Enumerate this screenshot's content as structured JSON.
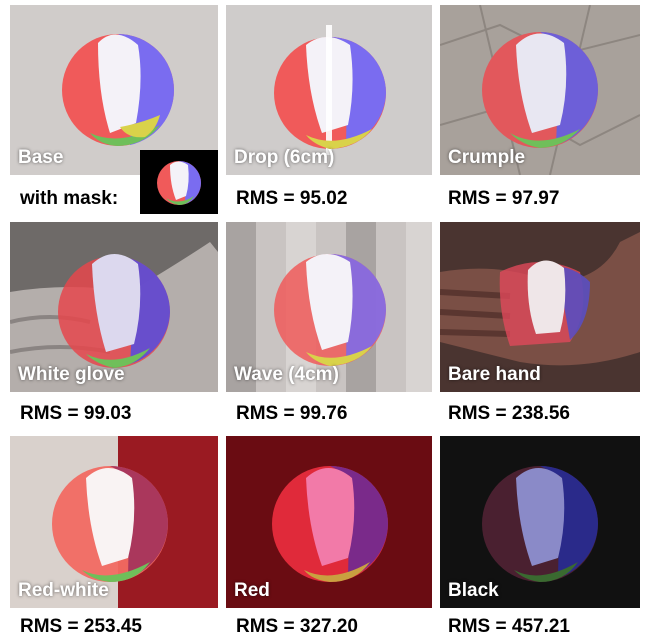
{
  "panels": [
    {
      "caption": "Base",
      "rms": "",
      "background": "#d8d4d0"
    },
    {
      "caption": "Drop (6cm)",
      "rms": "RMS = 95.02",
      "background": "#cfcccb"
    },
    {
      "caption": "Crumple",
      "rms": "RMS = 97.97",
      "background": "#a8a19b"
    },
    {
      "caption": "White glove",
      "rms": "RMS = 99.03",
      "background": "#7e7a78"
    },
    {
      "caption": "Wave (4cm)",
      "rms": "RMS = 99.76",
      "background": "#c9c4c2"
    },
    {
      "caption": "Bare hand",
      "rms": "RMS = 238.56",
      "background": "#4a3430"
    },
    {
      "caption": "Red-white",
      "rms": "RMS = 253.45",
      "background": "#d9d1cc"
    },
    {
      "caption": "Red",
      "rms": "RMS = 327.20",
      "background": "#6a0c12"
    },
    {
      "caption": "Black",
      "rms": "RMS = 457.21",
      "background": "#111111"
    }
  ],
  "mask_label": "with mask:",
  "colors": {
    "ball_red": "#f05a5a",
    "ball_blue": "#7a6cf0",
    "ball_white": "#f4f2f8",
    "ball_yellow": "#d9d24a",
    "ball_green": "#6fbf5a"
  }
}
